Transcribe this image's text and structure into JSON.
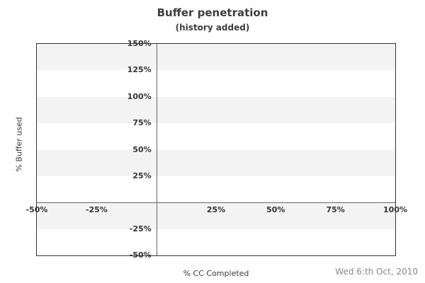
{
  "chart_data": {
    "type": "scatter",
    "title": "Buffer penetration",
    "subtitle": "(history added)",
    "xlabel": "% CC Completed",
    "ylabel": "% Buffer used",
    "xlim": [
      -50,
      100
    ],
    "ylim": [
      -50,
      150
    ],
    "x_ticks": [
      {
        "value": -50,
        "label": "-50%"
      },
      {
        "value": -25,
        "label": "-25%"
      },
      {
        "value": 25,
        "label": "25%"
      },
      {
        "value": 50,
        "label": "50%"
      },
      {
        "value": 75,
        "label": "75%"
      },
      {
        "value": 100,
        "label": "100%"
      }
    ],
    "y_ticks": [
      {
        "value": 150,
        "label": "150%"
      },
      {
        "value": 125,
        "label": "125%"
      },
      {
        "value": 100,
        "label": "100%"
      },
      {
        "value": 75,
        "label": "75%"
      },
      {
        "value": 50,
        "label": "50%"
      },
      {
        "value": 25,
        "label": "25%"
      },
      {
        "value": -25,
        "label": "-25%"
      },
      {
        "value": -50,
        "label": "-50%"
      }
    ],
    "bands": [
      [
        150,
        125
      ],
      [
        100,
        75
      ],
      [
        50,
        25
      ],
      [
        0,
        -25
      ]
    ],
    "zero_lines": {
      "x": 0,
      "y": 0
    },
    "series": [],
    "grid": "horizontal-bands",
    "legend": null,
    "annotation": "Wed 6:th Oct, 2010",
    "colors": {
      "band": "#f3f3f3",
      "zero_line": "#666666",
      "plot_border": "#333333",
      "tick_text": "#333333",
      "title_text": "#3d3d3d",
      "axis_title_text": "#3a3a3a",
      "date_text": "#888888",
      "background": "#ffffff"
    }
  }
}
